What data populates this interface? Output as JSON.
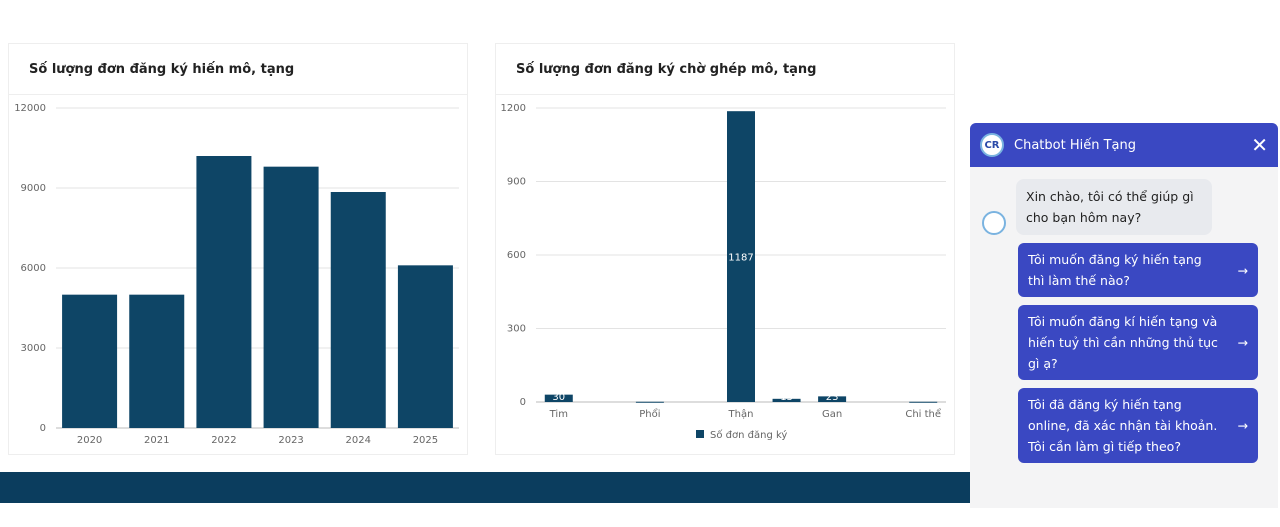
{
  "chart_data": [
    {
      "type": "bar",
      "title": "Số lượng đơn đăng ký hiến mô, tạng",
      "categories": [
        "2020",
        "2021",
        "2022",
        "2023",
        "2024",
        "2025"
      ],
      "values": [
        5000,
        5000,
        10200,
        9800,
        8850,
        6100
      ],
      "ylim": [
        0,
        12000
      ],
      "yticks": [
        0,
        3000,
        6000,
        9000,
        12000
      ],
      "grid": true,
      "color": "#0e4566"
    },
    {
      "type": "bar",
      "title": "Số lượng đơn đăng ký chờ ghép mô, tạng",
      "categories": [
        "Tim",
        "",
        "Phổi",
        "",
        "Thận",
        "",
        "Gan",
        "",
        "Chi thể"
      ],
      "values": [
        30,
        0,
        1,
        0,
        1187,
        13,
        23,
        0,
        1
      ],
      "data_labels": [
        "30",
        "",
        "",
        "",
        "1187",
        "13",
        "23",
        "",
        ""
      ],
      "ylim": [
        0,
        1200
      ],
      "yticks": [
        0,
        300,
        600,
        900,
        1200
      ],
      "grid": true,
      "legend": "Số đơn đăng ký",
      "legend_position": "bottom",
      "color": "#0e4566"
    }
  ],
  "chatbot": {
    "title": "Chatbot Hiến Tạng",
    "logo": "CR",
    "greeting": "Xin chào, tôi có thể giúp gì cho bạn hôm nay?",
    "suggestions": [
      "Tôi muốn đăng ký hiến tạng thì làm thế nào?",
      "Tôi muốn đăng kí hiến tạng và hiến tuỷ thì cần những thủ tục gì ạ?",
      "Tôi đã đăng ký hiến tạng online, đã xác nhận tài khoản. Tôi cần làm gì tiếp theo?"
    ]
  }
}
